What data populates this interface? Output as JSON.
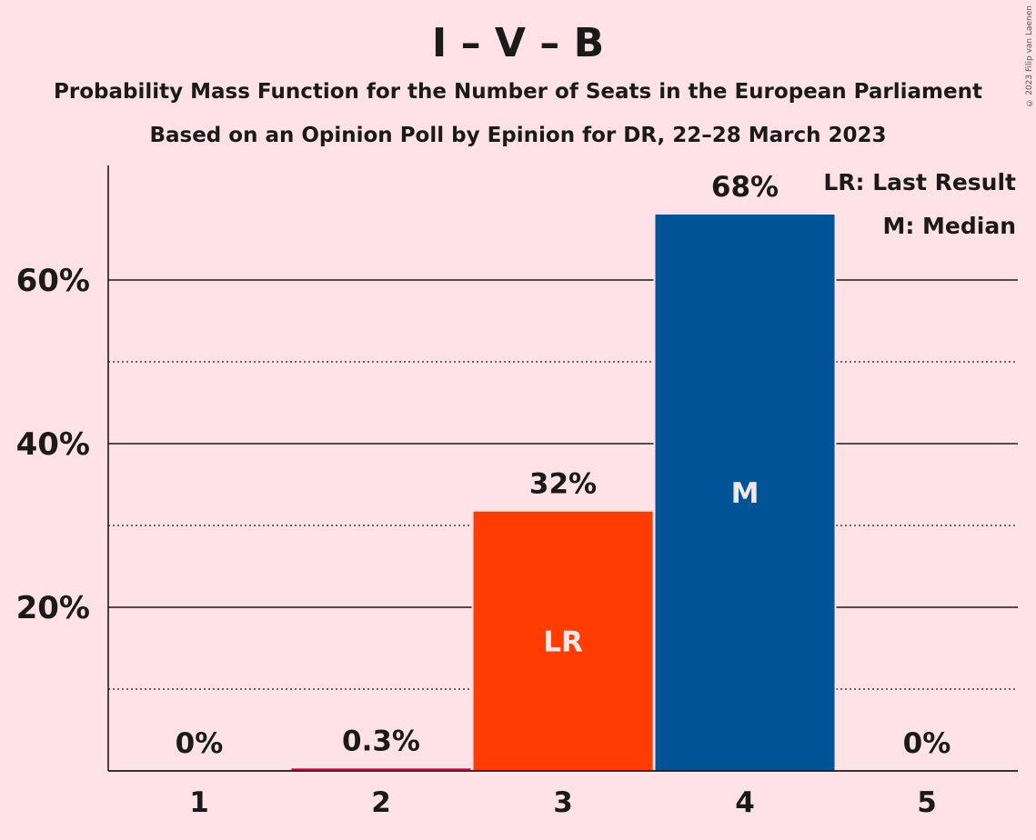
{
  "title": "I – V – B",
  "subtitle_1": "Probability Mass Function for the Number of Seats in the European Parliament",
  "subtitle_2": "Based on an Opinion Poll by Epinion for DR, 22–28 March 2023",
  "copyright": "© 2023 Filip van Laenen",
  "colors": {
    "background": "#FFE2E6",
    "last_result_bar": "#FF3D00",
    "median_bar": "#005395",
    "other_bar": "#D6005A"
  },
  "legend": {
    "last_result": "LR: Last Result",
    "median": "M: Median"
  },
  "chart_data": {
    "type": "bar",
    "categories": [
      "1",
      "2",
      "3",
      "4",
      "5"
    ],
    "values": [
      0,
      0.3,
      31.7,
      68,
      0
    ],
    "data_labels": [
      "0%",
      "0.3%",
      "32%",
      "68%",
      "0%"
    ],
    "bar_markers": [
      "",
      "",
      "LR",
      "M",
      ""
    ],
    "y_ticks": [
      20,
      40,
      60
    ],
    "y_tick_labels": [
      "20%",
      "40%",
      "60%"
    ],
    "y_minor_ticks": [
      10,
      30,
      50
    ],
    "ylim": [
      0,
      74
    ],
    "last_result": "3",
    "median": "4",
    "grid": true,
    "legend_position": "top-right"
  }
}
